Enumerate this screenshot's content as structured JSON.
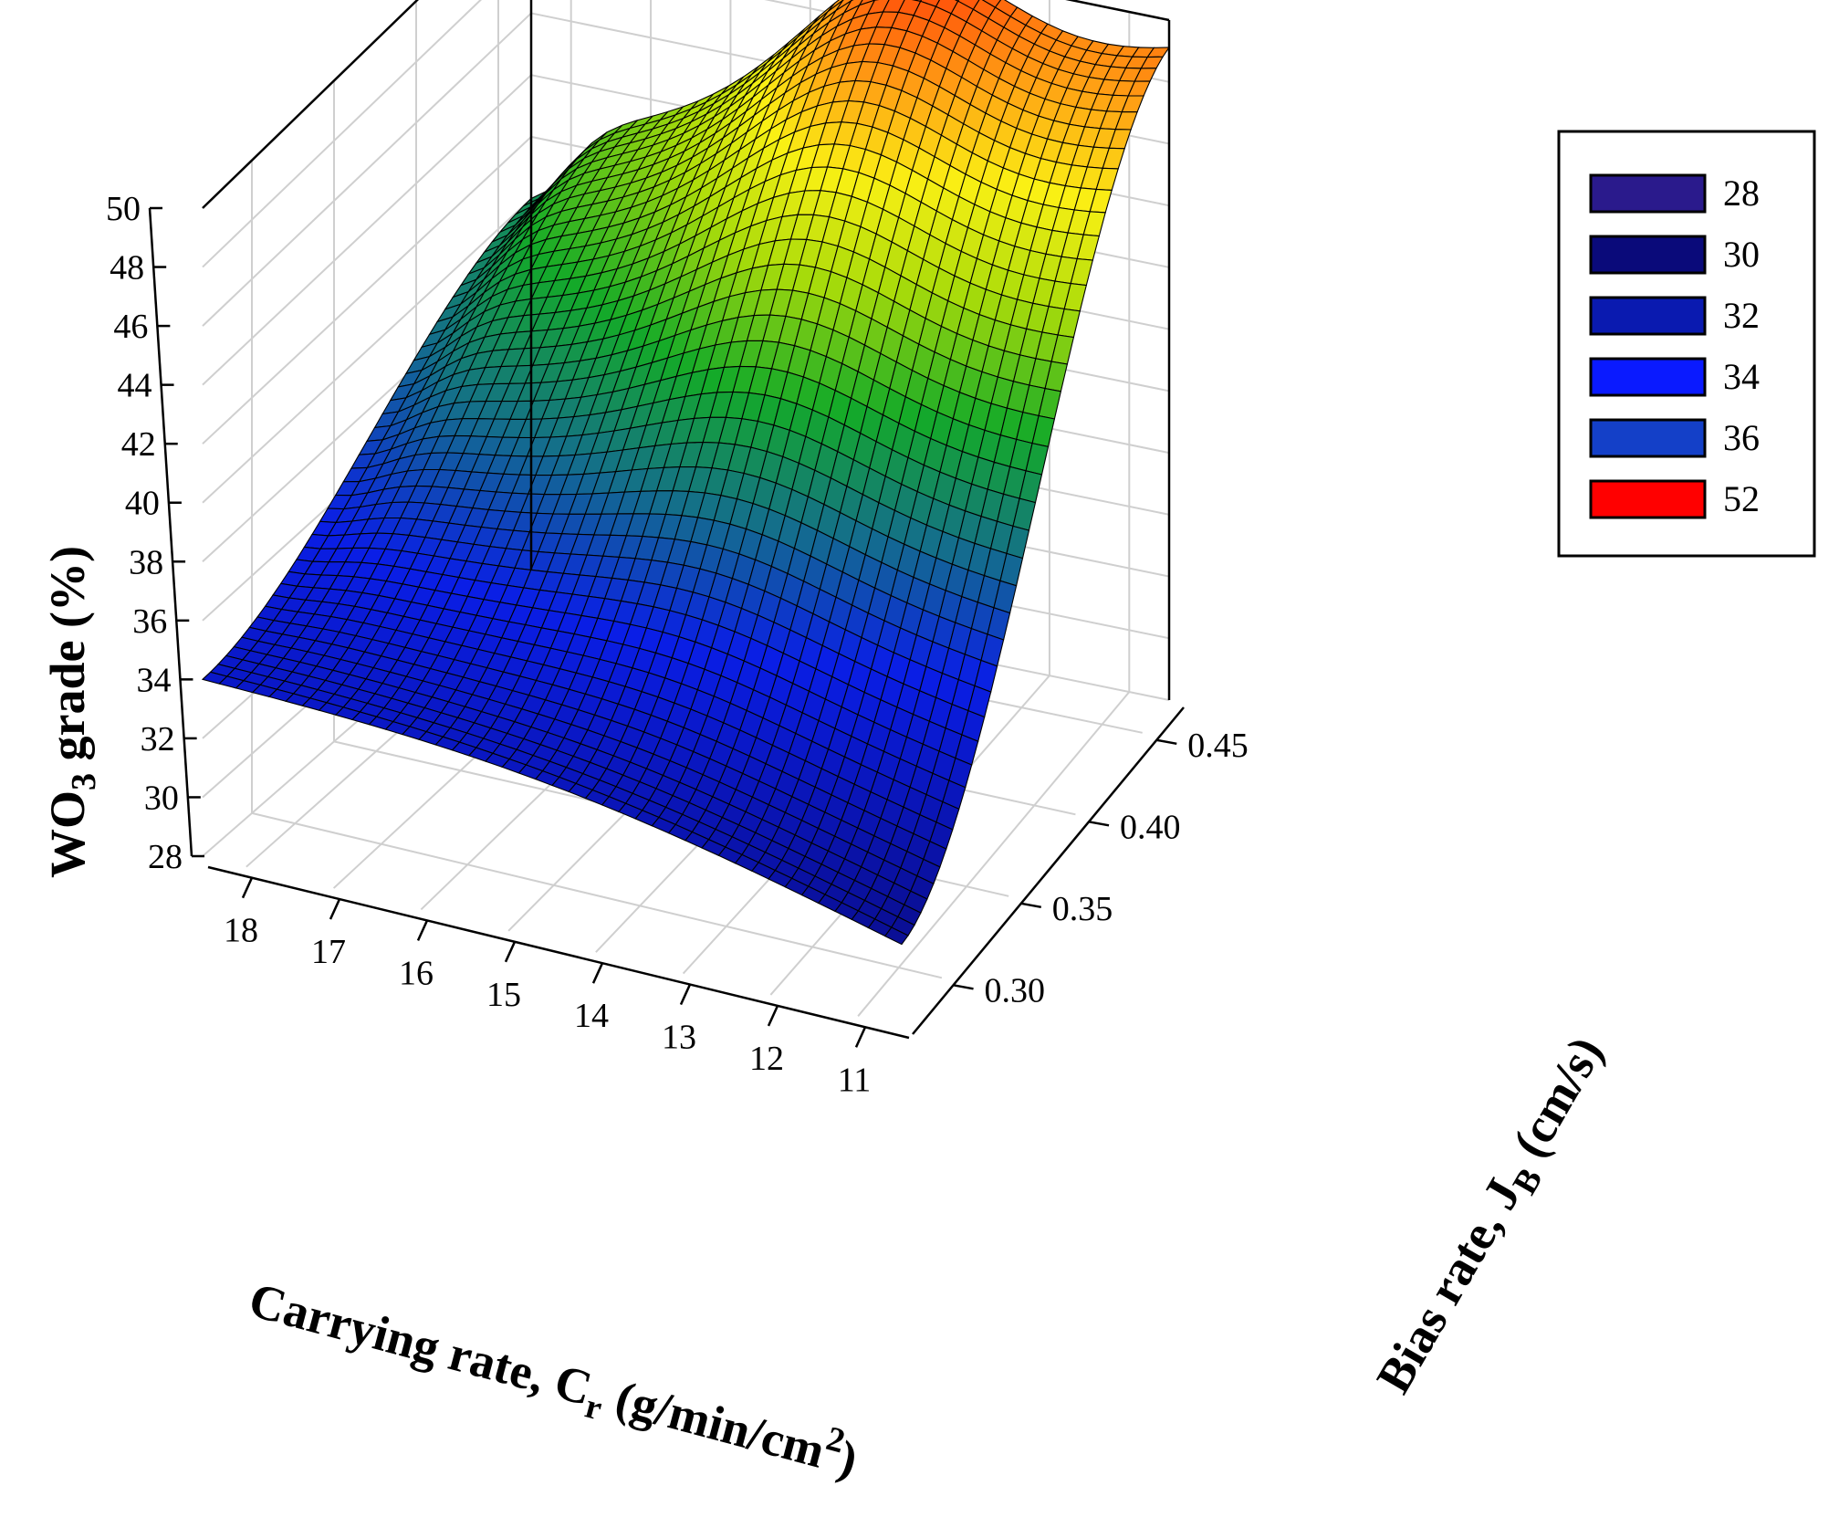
{
  "chart_data": {
    "type": "surface3d",
    "title": "",
    "zlabel": {
      "main": "WO",
      "sub": "3",
      "rest": " grade (%)"
    },
    "xlabel": {
      "main": "Carrying rate, C",
      "sub": "r",
      "rest": " (g/min/cm",
      "sup": "2",
      "end": ")"
    },
    "ylabel": {
      "main": "Bias rate, J",
      "sub": "B",
      "rest": " (cm/s)"
    },
    "z_ticks": [
      "28",
      "30",
      "32",
      "34",
      "36",
      "38",
      "40",
      "42",
      "44",
      "46",
      "48",
      "50"
    ],
    "zlim": [
      28,
      50
    ],
    "x_ticks": [
      "18",
      "17",
      "16",
      "15",
      "14",
      "13",
      "12",
      "11"
    ],
    "xlim": [
      18.5,
      10.5
    ],
    "y_ticks": [
      "0.30",
      "0.35",
      "0.40",
      "0.45"
    ],
    "ylim": [
      0.27,
      0.47
    ],
    "grid": true,
    "legend": {
      "position": "top-right",
      "entries": [
        {
          "label": "28",
          "color": "#2a1a8c"
        },
        {
          "label": "30",
          "color": "#0a0a7a"
        },
        {
          "label": "32",
          "color": "#0a1ab0"
        },
        {
          "label": "34",
          "color": "#0a1aff"
        },
        {
          "label": "36",
          "color": "#1440c8"
        },
        {
          "label": "52",
          "color": "#ff0000"
        }
      ]
    },
    "corner_values": [
      {
        "x": 18.5,
        "y": 0.27,
        "z": 34.0
      },
      {
        "x": 10.5,
        "y": 0.27,
        "z": 30.8
      },
      {
        "x": 18.5,
        "y": 0.47,
        "z": 42.0
      },
      {
        "x": 10.5,
        "y": 0.47,
        "z": 49.0
      }
    ],
    "peak": {
      "x": 13.8,
      "y": 0.47,
      "z": 50.0
    }
  }
}
